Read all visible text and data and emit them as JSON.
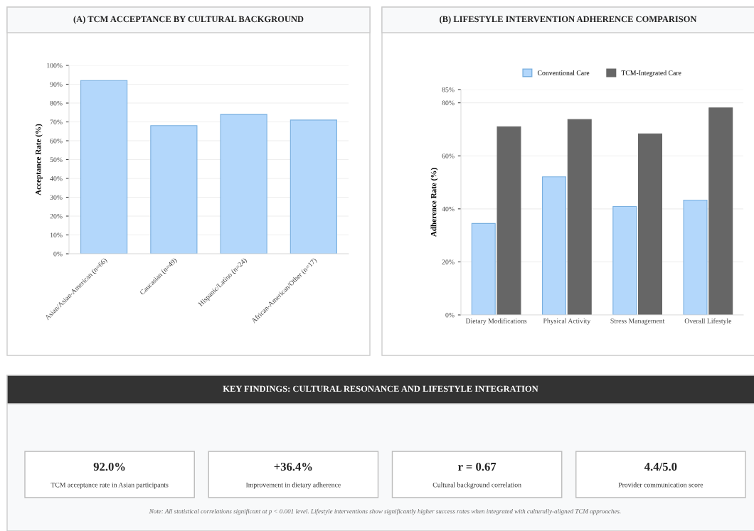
{
  "chart_data": [
    {
      "type": "bar",
      "title": "(A) TCM ACCEPTANCE BY CULTURAL BACKGROUND",
      "ylabel": "Acceptance Rate (%)",
      "categories": [
        "Asian/Asian-American (n=66)",
        "Caucasian (n=49)",
        "Hispanic/Latino (n=24)",
        "African-American/Other (n=17)"
      ],
      "series": [
        {
          "color": "#b3d7fb",
          "values": [
            92,
            68,
            74,
            71
          ]
        }
      ],
      "ylim": [
        0,
        100
      ],
      "yticks": [
        {
          "value": 0,
          "label": "0%"
        },
        {
          "value": 10,
          "label": "10%"
        },
        {
          "value": 20,
          "label": "20%"
        },
        {
          "value": 30,
          "label": "30%"
        },
        {
          "value": 40,
          "label": "40%"
        },
        {
          "value": 50,
          "label": "50%"
        },
        {
          "value": 60,
          "label": "60%"
        },
        {
          "value": 70,
          "label": "70%"
        },
        {
          "value": 80,
          "label": "80%"
        },
        {
          "value": 90,
          "label": "90%"
        },
        {
          "value": 100,
          "label": "100%"
        }
      ],
      "grid": "y"
    },
    {
      "type": "bar",
      "title": "(B) LIFESTYLE INTERVENTION ADHERENCE COMPARISON",
      "ylabel": "Adherence Rate (%)",
      "categories": [
        "Dietary Modifications",
        "Physical Activity",
        "Stress Management",
        "Overall Lifestyle"
      ],
      "series": [
        {
          "name": "Conventional Care",
          "color": "#b3d7fb",
          "values": [
            34.5,
            52.1,
            40.9,
            43.3
          ]
        },
        {
          "name": "TCM-Integrated Care",
          "color": "#666666",
          "values": [
            71.0,
            73.7,
            68.3,
            78.1
          ]
        }
      ],
      "ylim": [
        0,
        85
      ],
      "yticks": [
        {
          "value": 0,
          "label": "0%"
        },
        {
          "value": 20,
          "label": "20%"
        },
        {
          "value": 40,
          "label": "40%"
        },
        {
          "value": 60,
          "label": "60%"
        },
        {
          "value": 80,
          "label": "80%"
        },
        {
          "value": 85,
          "label": "85%"
        }
      ],
      "grid": "y",
      "legend": "top"
    },
    {
      "type": "other",
      "title": "KEY FINDINGS: CULTURAL RESONANCE AND LIFESTYLE INTEGRATION",
      "annotations": [
        "92.0%",
        "TCM acceptance rate in Asian participants",
        "+36.4%",
        "Improvement in dietary adherence",
        "r = 0.67",
        "Cultural background correlation",
        "4.4/5.0",
        "Provider communication score",
        "Note: All statistical correlations significant at p < 0.001 level. Lifestyle interventions show significantly higher success rates when integrated with culturally-aligned TCM approaches."
      ]
    }
  ]
}
